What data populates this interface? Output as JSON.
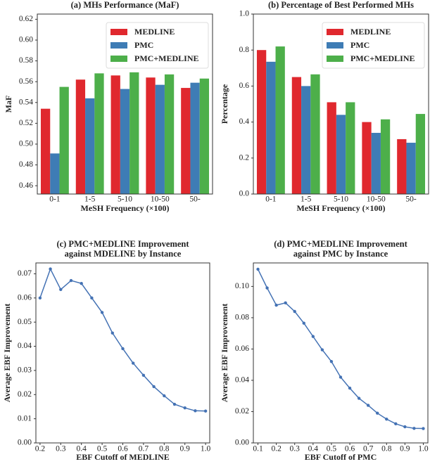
{
  "chart_data": [
    {
      "type": "bar",
      "title": [
        "(a) MHs Performance (MaF)"
      ],
      "xlabel": "MeSH Frequency (×100)",
      "ylabel": "MaF",
      "categories": [
        "0-1",
        "1-5",
        "5-10",
        "10-50",
        "50-"
      ],
      "series": [
        {
          "name": "MEDLINE",
          "color": "#e0282e",
          "values": [
            0.534,
            0.562,
            0.566,
            0.564,
            0.554
          ]
        },
        {
          "name": "PMC",
          "color": "#3e7cb5",
          "values": [
            0.491,
            0.544,
            0.553,
            0.557,
            0.559
          ]
        },
        {
          "name": "PMC+MEDLINE",
          "color": "#4daf4a",
          "values": [
            0.555,
            0.568,
            0.569,
            0.567,
            0.563
          ]
        }
      ],
      "ylim": [
        0.452,
        0.625
      ],
      "yticks": [
        {
          "value": 0.46,
          "label": "0.46"
        },
        {
          "value": 0.48,
          "label": "0.48"
        },
        {
          "value": 0.5,
          "label": "0.50"
        },
        {
          "value": 0.52,
          "label": "0.52"
        },
        {
          "value": 0.54,
          "label": "0.54"
        },
        {
          "value": 0.56,
          "label": "0.56"
        },
        {
          "value": 0.58,
          "label": "0.58"
        },
        {
          "value": 0.6,
          "label": "0.60"
        },
        {
          "value": 0.62,
          "label": "0.62"
        }
      ],
      "legend": "upper right"
    },
    {
      "type": "bar",
      "title": [
        "(b) Percentage of Best Performed MHs"
      ],
      "xlabel": "MeSH Frequency (×100)",
      "ylabel": "Percentage",
      "categories": [
        "0-1",
        "1-5",
        "5-10",
        "10-50",
        "50-"
      ],
      "series": [
        {
          "name": "MEDLINE",
          "color": "#e0282e",
          "values": [
            0.8,
            0.65,
            0.51,
            0.4,
            0.305
          ]
        },
        {
          "name": "PMC",
          "color": "#3e7cb5",
          "values": [
            0.735,
            0.6,
            0.44,
            0.34,
            0.285
          ]
        },
        {
          "name": "PMC+MEDLINE",
          "color": "#4daf4a",
          "values": [
            0.82,
            0.665,
            0.51,
            0.415,
            0.445
          ]
        }
      ],
      "ylim": [
        0,
        1
      ],
      "yticks": [
        {
          "value": 0,
          "label": "0.0"
        },
        0.2,
        0.4,
        0.6,
        0.8,
        {
          "value": 1,
          "label": "1.0"
        }
      ],
      "legend": "upper right"
    },
    {
      "type": "line",
      "title": [
        "(c) PMC+MEDLINE Improvement",
        "against MDELINE by Instance"
      ],
      "xlabel": "EBF Cutoff of MEDLINE",
      "ylabel": "Average EBF Improvement",
      "color": "#4472b4",
      "x": [
        0.2,
        0.25,
        0.3,
        0.35,
        0.4,
        0.45,
        0.5,
        0.55,
        0.6,
        0.65,
        0.7,
        0.75,
        0.8,
        0.85,
        0.9,
        0.95,
        1.0
      ],
      "values": [
        0.06,
        0.072,
        0.0635,
        0.0672,
        0.066,
        0.06,
        0.054,
        0.0455,
        0.039,
        0.033,
        0.028,
        0.0233,
        0.0195,
        0.016,
        0.0145,
        0.0133,
        0.0132
      ],
      "xlim": [
        0.18,
        1.02
      ],
      "ylim": [
        0,
        0.0745
      ],
      "xticks": [
        0.2,
        0.3,
        0.4,
        0.5,
        0.6,
        0.7,
        0.8,
        0.9,
        {
          "value": 1,
          "label": "1.0"
        }
      ],
      "yticks": [
        {
          "value": 0,
          "label": "0.00"
        },
        {
          "value": 0.01,
          "label": "0.01"
        },
        {
          "value": 0.02,
          "label": "0.02"
        },
        {
          "value": 0.03,
          "label": "0.03"
        },
        {
          "value": 0.04,
          "label": "0.04"
        },
        {
          "value": 0.05,
          "label": "0.05"
        },
        {
          "value": 0.06,
          "label": "0.06"
        },
        {
          "value": 0.07,
          "label": "0.07"
        }
      ]
    },
    {
      "type": "line",
      "title": [
        "(d) PMC+MEDLINE Improvement",
        "against PMC by Instance"
      ],
      "xlabel": "EBF Cutoff of PMC",
      "ylabel": "Average EBF Improvement",
      "color": "#4472b4",
      "x": [
        0.1,
        0.15,
        0.2,
        0.25,
        0.3,
        0.35,
        0.4,
        0.45,
        0.5,
        0.55,
        0.6,
        0.65,
        0.7,
        0.75,
        0.8,
        0.85,
        0.9,
        0.95,
        1.0
      ],
      "values": [
        0.111,
        0.099,
        0.088,
        0.0895,
        0.084,
        0.0765,
        0.068,
        0.0595,
        0.052,
        0.042,
        0.035,
        0.0285,
        0.024,
        0.019,
        0.0152,
        0.0122,
        0.0103,
        0.0093,
        0.0092
      ],
      "xlim": [
        0.075,
        1.025
      ],
      "ylim": [
        0,
        0.115
      ],
      "xticks": [
        0.1,
        0.2,
        0.3,
        0.4,
        0.5,
        0.6,
        0.7,
        0.8,
        0.9,
        {
          "value": 1,
          "label": "1.0"
        }
      ],
      "yticks": [
        {
          "value": 0,
          "label": "0.00"
        },
        {
          "value": 0.02,
          "label": "0.02"
        },
        {
          "value": 0.04,
          "label": "0.04"
        },
        {
          "value": 0.06,
          "label": "0.06"
        },
        {
          "value": 0.08,
          "label": "0.08"
        },
        {
          "value": 0.1,
          "label": "0.10"
        }
      ]
    }
  ]
}
